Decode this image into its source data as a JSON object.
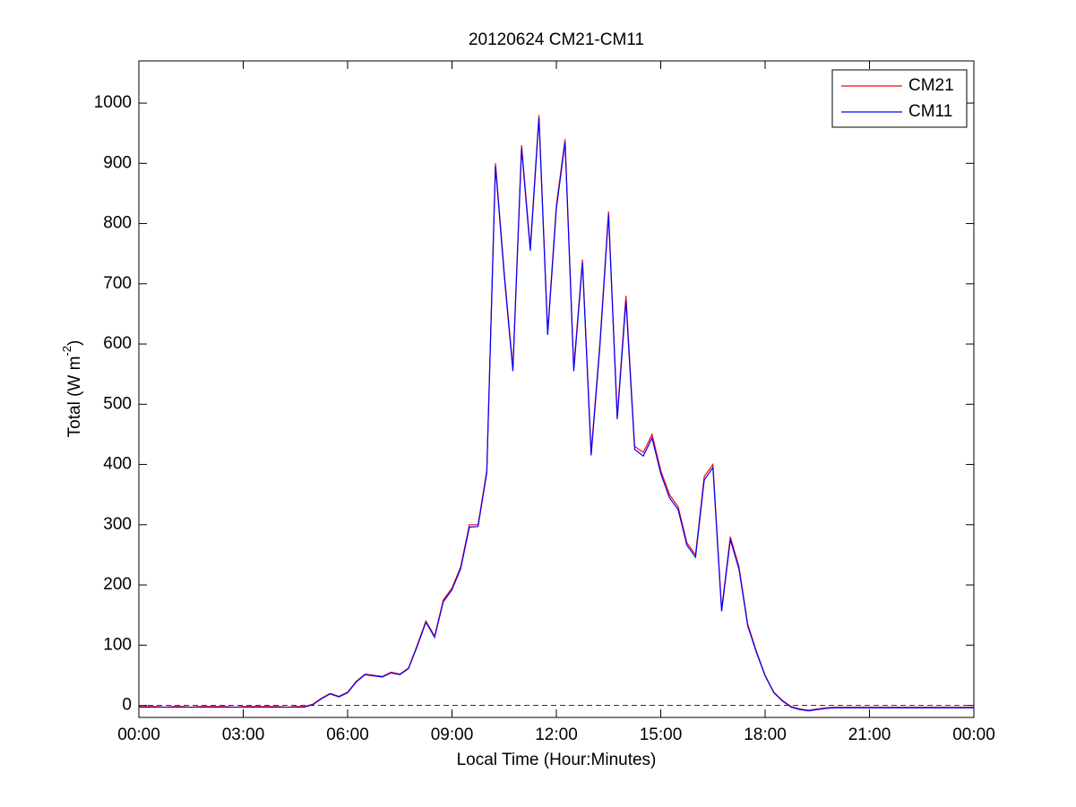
{
  "chart_data": {
    "type": "line",
    "title": "20120624 CM21-CM11",
    "xlabel": "Local Time (Hour:Minutes)",
    "ylabel": {
      "text": "Total (W m",
      "superscript": "-2",
      "suffix": ")"
    },
    "x": [
      0,
      0.25,
      0.5,
      0.75,
      1,
      1.25,
      1.5,
      1.75,
      2,
      2.25,
      2.5,
      2.75,
      3,
      3.25,
      3.5,
      3.75,
      4,
      4.25,
      4.5,
      4.75,
      5,
      5.25,
      5.5,
      5.75,
      6,
      6.25,
      6.5,
      6.75,
      7,
      7.25,
      7.5,
      7.75,
      8,
      8.25,
      8.5,
      8.75,
      9,
      9.25,
      9.5,
      9.75,
      10,
      10.25,
      10.5,
      10.75,
      11,
      11.25,
      11.5,
      11.75,
      12,
      12.25,
      12.5,
      12.75,
      13,
      13.25,
      13.5,
      13.75,
      14,
      14.25,
      14.5,
      14.75,
      15,
      15.25,
      15.5,
      15.75,
      16,
      16.25,
      16.5,
      16.75,
      17,
      17.25,
      17.5,
      17.75,
      18,
      18.25,
      18.5,
      18.75,
      19,
      19.25,
      19.5,
      19.75,
      20,
      20.25,
      20.5,
      20.75,
      21,
      21.25,
      21.5,
      21.75,
      22,
      22.25,
      22.5,
      22.75,
      23,
      23.25,
      23.5,
      23.75,
      24
    ],
    "series": [
      {
        "name": "CM21",
        "color": "#ff0000",
        "values": [
          -2,
          -2,
          -2,
          -3,
          -2,
          -2,
          -3,
          -2,
          -2,
          -2,
          -2,
          -3,
          -2,
          -2,
          -2,
          -2,
          -2,
          -3,
          -2,
          -2,
          2,
          12,
          20,
          15,
          22,
          40,
          52,
          50,
          48,
          55,
          52,
          62,
          100,
          140,
          115,
          175,
          195,
          230,
          300,
          300,
          390,
          900,
          720,
          560,
          930,
          760,
          980,
          620,
          830,
          940,
          560,
          740,
          420,
          600,
          820,
          480,
          680,
          430,
          420,
          450,
          390,
          350,
          330,
          270,
          250,
          380,
          400,
          160,
          280,
          230,
          135,
          90,
          50,
          22,
          8,
          -2,
          -6,
          -8,
          -6,
          -4,
          -3,
          -3,
          -3,
          -3,
          -3,
          -3,
          -3,
          -3,
          -3,
          -3,
          -3,
          -3,
          -3,
          -3,
          -3,
          -3,
          -3
        ]
      },
      {
        "name": "CM11",
        "color": "#0000ff",
        "values": [
          -3,
          -3,
          -3,
          -3,
          -3,
          -3,
          -3,
          -3,
          -3,
          -3,
          -3,
          -3,
          -3,
          -3,
          -3,
          -3,
          -3,
          -3,
          -3,
          -3,
          1,
          11,
          19,
          14,
          21,
          39,
          51,
          49,
          47,
          54,
          51,
          61,
          98,
          138,
          113,
          172,
          192,
          227,
          296,
          297,
          386,
          895,
          715,
          555,
          925,
          755,
          975,
          615,
          825,
          935,
          555,
          735,
          415,
          595,
          815,
          475,
          672,
          425,
          414,
          444,
          385,
          345,
          325,
          266,
          246,
          374,
          395,
          156,
          275,
          226,
          132,
          88,
          49,
          21,
          7,
          -3,
          -7,
          -9,
          -7,
          -5,
          -4,
          -4,
          -4,
          -4,
          -4,
          -4,
          -4,
          -4,
          -4,
          -4,
          -4,
          -4,
          -4,
          -4,
          -4,
          -4,
          -4
        ]
      }
    ],
    "xlim": [
      0,
      24
    ],
    "xticks": [
      {
        "value": 0,
        "label": "00:00"
      },
      {
        "value": 3,
        "label": "03:00"
      },
      {
        "value": 6,
        "label": "06:00"
      },
      {
        "value": 9,
        "label": "09:00"
      },
      {
        "value": 12,
        "label": "12:00"
      },
      {
        "value": 15,
        "label": "15:00"
      },
      {
        "value": 18,
        "label": "18:00"
      },
      {
        "value": 21,
        "label": "21:00"
      },
      {
        "value": 24,
        "label": "00:00"
      }
    ],
    "ylim": [
      -20,
      1070
    ],
    "yticks": [
      0,
      100,
      200,
      300,
      400,
      500,
      600,
      700,
      800,
      900,
      1000
    ],
    "reference_line": {
      "value": 0,
      "color": "#aa0000",
      "style": "dashed"
    },
    "legend": "upper right"
  }
}
